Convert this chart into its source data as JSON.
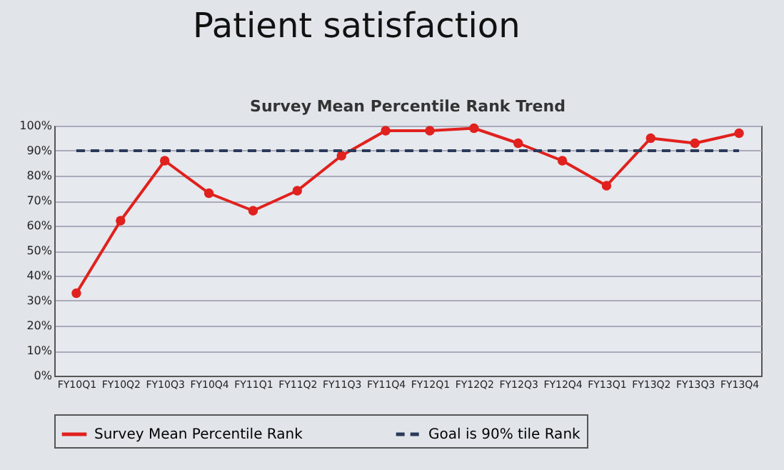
{
  "chart_data": {
    "type": "line",
    "title": "Patient satisfaction",
    "subtitle": "Survey Mean Percentile Rank Trend",
    "categories": [
      "FY10Q1",
      "FY10Q2",
      "FY10Q3",
      "FY10Q4",
      "FY11Q1",
      "FY11Q2",
      "FY11Q3",
      "FY11Q4",
      "FY12Q1",
      "FY12Q2",
      "FY12Q3",
      "FY12Q4",
      "FY13Q1",
      "FY13Q2",
      "FY13Q3",
      "FY13Q4"
    ],
    "series": [
      {
        "name": "Survey Mean Percentile Rank",
        "color": "#e0211d",
        "marker": "circle",
        "line_style": "solid",
        "values": [
          33,
          62,
          86,
          73,
          66,
          74,
          88,
          98,
          98,
          99,
          93,
          86,
          76,
          95,
          93,
          97
        ]
      },
      {
        "name": "Goal is 90% tile Rank",
        "color": "#2b3a5a",
        "marker": "none",
        "line_style": "dashed",
        "values": [
          90,
          90,
          90,
          90,
          90,
          90,
          90,
          90,
          90,
          90,
          90,
          90,
          90,
          90,
          90,
          90
        ]
      }
    ],
    "ylim": [
      0,
      100
    ],
    "yticks": [
      {
        "value": 0,
        "label": "0%"
      },
      {
        "value": 10,
        "label": "10%"
      },
      {
        "value": 20,
        "label": "20%"
      },
      {
        "value": 30,
        "label": "30%"
      },
      {
        "value": 40,
        "label": "40%"
      },
      {
        "value": 50,
        "label": "50%"
      },
      {
        "value": 60,
        "label": "60%"
      },
      {
        "value": 70,
        "label": "70%"
      },
      {
        "value": 80,
        "label": "80%"
      },
      {
        "value": 90,
        "label": "90%"
      },
      {
        "value": 100,
        "label": "100%"
      }
    ],
    "grid": "y",
    "legend": "bottom"
  }
}
